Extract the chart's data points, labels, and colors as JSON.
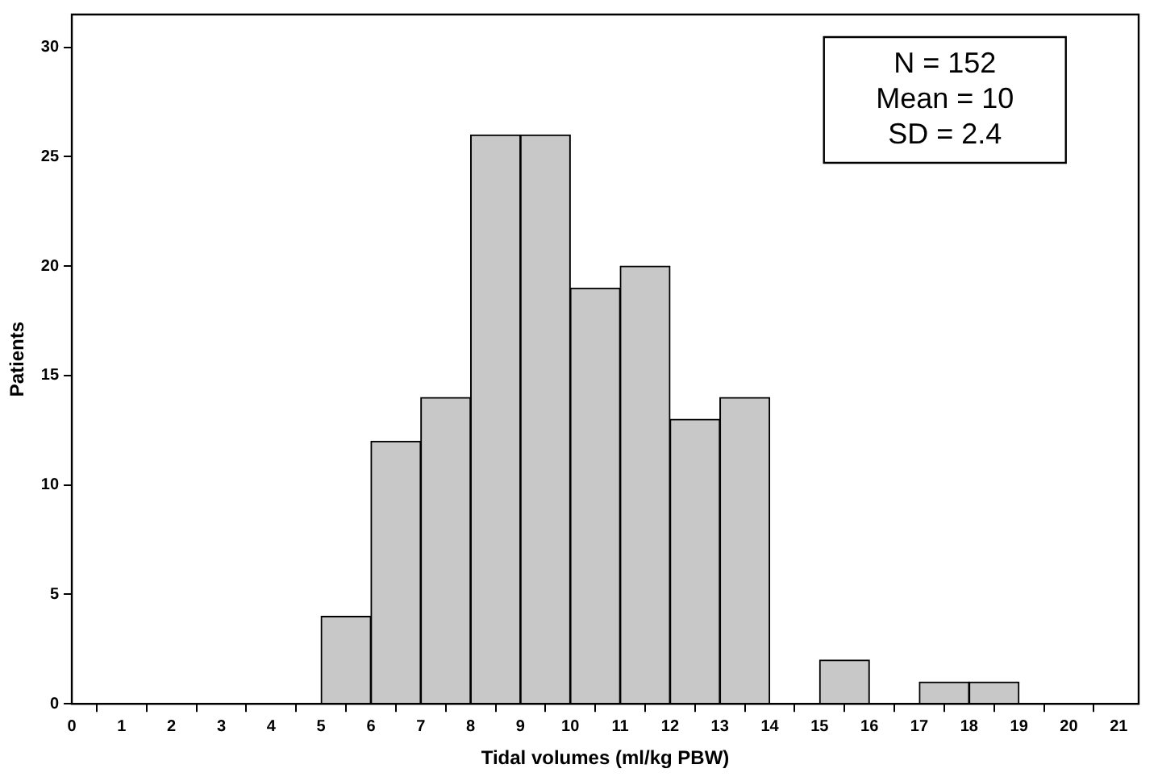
{
  "chart_data": {
    "type": "histogram",
    "xlabel": "Tidal volumes (ml/kg PBW)",
    "ylabel": "Patients",
    "bins": [
      5,
      6,
      7,
      8,
      9,
      10,
      11,
      12,
      13,
      14,
      15,
      16,
      17,
      18,
      19
    ],
    "values": [
      4,
      12,
      14,
      26,
      26,
      19,
      20,
      13,
      14,
      0,
      2,
      0,
      1,
      1
    ],
    "color": "#c8c8c8",
    "xlim": [
      0,
      21.4
    ],
    "xticks": [
      0,
      1,
      2,
      3,
      4,
      5,
      6,
      7,
      8,
      9,
      10,
      11,
      12,
      13,
      14,
      15,
      16,
      17,
      18,
      19,
      20,
      21
    ],
    "ylim": [
      0,
      31.5
    ],
    "yticks": [
      0,
      5,
      10,
      15,
      20,
      25,
      30
    ],
    "grid": false,
    "legend": false,
    "annotations": [
      "N = 152",
      "Mean = 10",
      "SD = 2.4"
    ]
  }
}
